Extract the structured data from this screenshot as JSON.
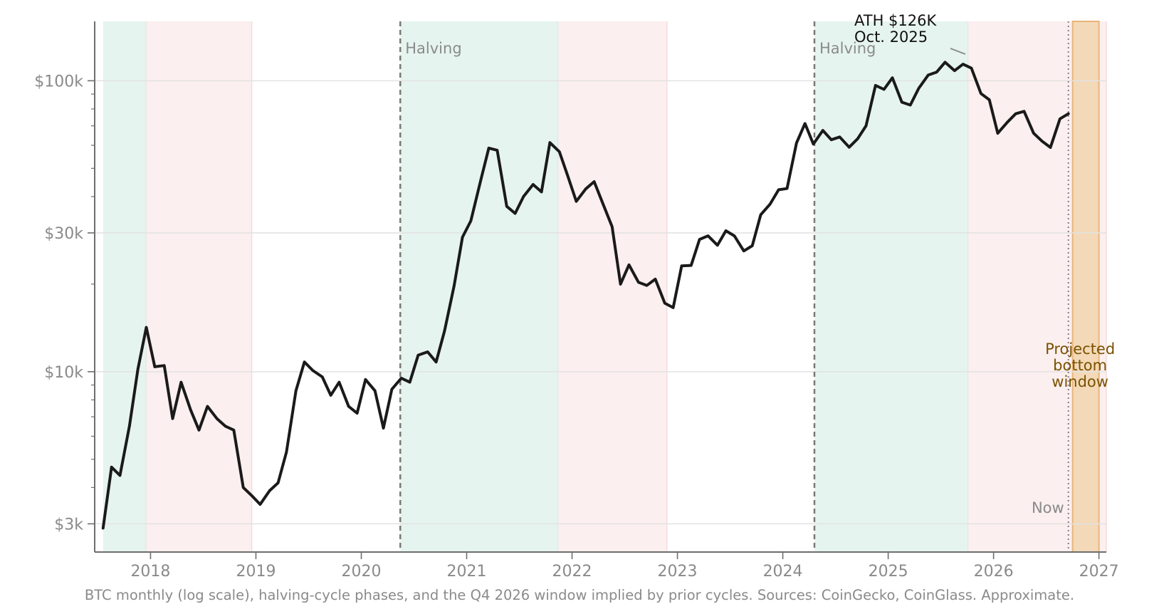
{
  "caption": "BTC monthly (log scale), halving-cycle phases, and the Q4 2026 window implied by prior cycles. Sources: CoinGecko, CoinGlass. Approximate.",
  "colors": {
    "line": "#1a1a1a",
    "bull_phase": "#e6f4ef",
    "bear_phase": "#fcefef",
    "projection": "#f3d9b8",
    "projection_edge": "#e9b57a",
    "projection_text": "#7a5200",
    "halving_line": "#7a7a72",
    "muted_text": "#8a8a8a",
    "grid": "#e2e2e2",
    "axis": "#6e6e6e"
  },
  "chart_data": {
    "type": "line",
    "yscale": "log",
    "xlim": [
      2017.47,
      2027.07
    ],
    "ylim": [
      2400,
      160000
    ],
    "grid": "y-major",
    "yticks": [
      {
        "value": 3000,
        "label": "$3k"
      },
      {
        "value": 10000,
        "label": "$10k"
      },
      {
        "value": 30000,
        "label": "$30k"
      },
      {
        "value": 100000,
        "label": "$100k"
      }
    ],
    "yminor_ticks": [
      4000,
      5000,
      6000,
      7000,
      8000,
      9000,
      20000,
      40000,
      50000,
      60000,
      70000,
      80000,
      90000
    ],
    "xticks": [
      {
        "value": 2018,
        "label": "2018"
      },
      {
        "value": 2019,
        "label": "2019"
      },
      {
        "value": 2020,
        "label": "2020"
      },
      {
        "value": 2021,
        "label": "2021"
      },
      {
        "value": 2022,
        "label": "2022"
      },
      {
        "value": 2023,
        "label": "2023"
      },
      {
        "value": 2024,
        "label": "2024"
      },
      {
        "value": 2025,
        "label": "2025"
      },
      {
        "value": 2026,
        "label": "2026"
      },
      {
        "value": 2027,
        "label": "2027"
      }
    ],
    "phases": [
      {
        "type": "bull",
        "start": 2017.55,
        "end": 2017.96
      },
      {
        "type": "bear",
        "start": 2017.96,
        "end": 2018.96
      },
      {
        "type": "bull",
        "start": 2020.37,
        "end": 2021.87
      },
      {
        "type": "bear",
        "start": 2021.87,
        "end": 2022.9
      },
      {
        "type": "bull",
        "start": 2024.3,
        "end": 2025.76
      },
      {
        "type": "bear",
        "start": 2025.76,
        "end": 2027.07
      }
    ],
    "projection_window": {
      "start": 2026.75,
      "end": 2027.0,
      "label": [
        "Projected",
        "bottom",
        "window"
      ]
    },
    "halvings": [
      {
        "x": 2020.37,
        "label": "Halving"
      },
      {
        "x": 2024.3,
        "label": "Halving"
      }
    ],
    "now": {
      "x": 2026.71,
      "label": "Now"
    },
    "ath_annotation": {
      "x": 2025.76,
      "y": 126000,
      "label": [
        "ATH $126K",
        "Oct. 2025"
      ]
    },
    "series": [
      {
        "x": [
          2017.55,
          2017.63,
          2017.71,
          2017.8,
          2017.88,
          2017.96,
          2018.04,
          2018.13,
          2018.21,
          2018.29,
          2018.38,
          2018.46,
          2018.54,
          2018.63,
          2018.71,
          2018.79,
          2018.88,
          2018.96,
          2019.04,
          2019.13,
          2019.21,
          2019.29,
          2019.38,
          2019.46,
          2019.54,
          2019.63,
          2019.71,
          2019.79,
          2019.88,
          2019.96,
          2020.04,
          2020.13,
          2020.21,
          2020.29,
          2020.38,
          2020.46,
          2020.54,
          2020.63,
          2020.71,
          2020.79,
          2020.88,
          2020.96,
          2021.04,
          2021.13,
          2021.21,
          2021.29,
          2021.38,
          2021.46,
          2021.54,
          2021.63,
          2021.71,
          2021.79,
          2021.88,
          2021.96,
          2022.04,
          2022.13,
          2022.21,
          2022.29,
          2022.38,
          2022.46,
          2022.54,
          2022.63,
          2022.71,
          2022.79,
          2022.88,
          2022.96,
          2023.04,
          2023.13,
          2023.21,
          2023.29,
          2023.38,
          2023.46,
          2023.54,
          2023.63,
          2023.71,
          2023.79,
          2023.88,
          2023.96,
          2024.04,
          2024.13,
          2024.21,
          2024.29,
          2024.38,
          2024.46,
          2024.54,
          2024.63,
          2024.71,
          2024.79,
          2024.88,
          2024.96,
          2025.04,
          2025.13,
          2025.21,
          2025.29,
          2025.38,
          2025.46,
          2025.54,
          2025.63,
          2025.71,
          2025.79,
          2025.88,
          2025.96,
          2026.04,
          2026.13,
          2026.21,
          2026.29,
          2026.38,
          2026.46,
          2026.54,
          2026.63,
          2026.71
        ],
        "values": [
          2900,
          4700,
          4400,
          6500,
          10200,
          14200,
          10400,
          10500,
          6900,
          9200,
          7400,
          6300,
          7600,
          6900,
          6500,
          6300,
          4000,
          3750,
          3500,
          3900,
          4150,
          5300,
          8600,
          10800,
          10100,
          9600,
          8300,
          9200,
          7600,
          7200,
          9400,
          8600,
          6400,
          8700,
          9500,
          9200,
          11400,
          11700,
          10800,
          13800,
          19700,
          29000,
          33000,
          45000,
          58700,
          57700,
          37000,
          35000,
          40000,
          44000,
          41500,
          61300,
          57000,
          47000,
          38500,
          42500,
          45000,
          38000,
          31500,
          20000,
          23300,
          20300,
          19800,
          20800,
          17200,
          16600,
          23100,
          23200,
          28500,
          29300,
          27200,
          30500,
          29300,
          26000,
          27100,
          34600,
          37700,
          42200,
          42600,
          61100,
          71300,
          60600,
          67500,
          62700,
          64100,
          59100,
          63200,
          70000,
          96400,
          93400,
          102400,
          84400,
          82500,
          94200,
          104600,
          107100,
          115800,
          108300,
          114000,
          110500,
          90400,
          86000,
          66000,
          72000,
          77000,
          78500,
          66000,
          62000,
          59000,
          74000,
          77000
        ]
      }
    ]
  }
}
